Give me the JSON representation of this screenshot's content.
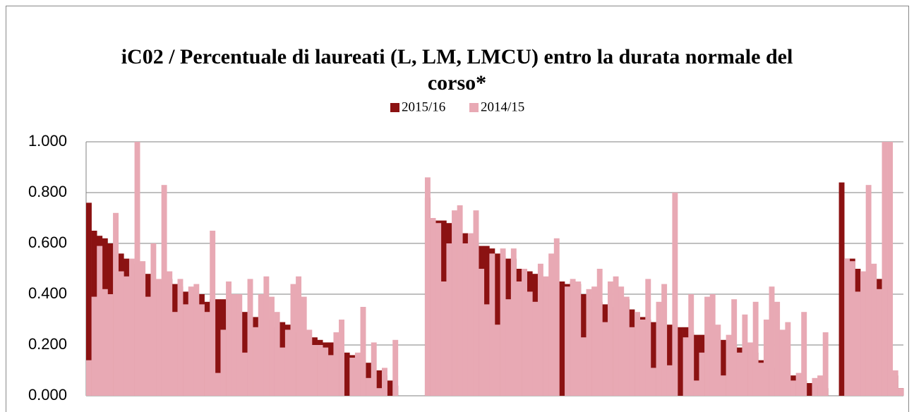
{
  "chart_data": {
    "type": "bar",
    "title": "iC02 / Percentuale di laureati (L, LM, LMCU) entro la durata normale del corso*",
    "categories": [
      null,
      null,
      null,
      null,
      null,
      null,
      null,
      null,
      null,
      null,
      null,
      null,
      null,
      null,
      null,
      null,
      null,
      null,
      null,
      null,
      null,
      null,
      null,
      null,
      null,
      null,
      null,
      null,
      null,
      null,
      null,
      null,
      null,
      null,
      null,
      null,
      null,
      null,
      null,
      null,
      null,
      null,
      null,
      null,
      null,
      null,
      null,
      null,
      null,
      null,
      null,
      null,
      null,
      null,
      null,
      null,
      null,
      null,
      null,
      null,
      null,
      null,
      null,
      null,
      null,
      null,
      null,
      null,
      null,
      null,
      null,
      null,
      null,
      null,
      null,
      null,
      null,
      null,
      null,
      null,
      null,
      null,
      null,
      null,
      null,
      null,
      null,
      null,
      null,
      null,
      null,
      null,
      null,
      null,
      null,
      null,
      null,
      null,
      null,
      null,
      null,
      null,
      null,
      null,
      null,
      null,
      null,
      null,
      null,
      null,
      null,
      null,
      null,
      null,
      null,
      null,
      null,
      null,
      null,
      null,
      null,
      null,
      null,
      null,
      null,
      null,
      null,
      null,
      null,
      null,
      null,
      null,
      null,
      null,
      null,
      null,
      null,
      null,
      null,
      null,
      null,
      null,
      null,
      null,
      null,
      null,
      null,
      null,
      null,
      null,
      null,
      null
    ],
    "series": [
      {
        "name": "2015/16",
        "color": "#8b1212",
        "values": [
          0.76,
          0.65,
          0.63,
          0.62,
          0.6,
          0.6,
          0.56,
          0.54,
          0.49,
          0.52,
          0.48,
          0.48,
          0.44,
          0.45,
          0.24,
          0.46,
          0.44,
          0.43,
          0.41,
          0.41,
          0.26,
          0.4,
          0.37,
          0.38,
          0.38,
          0.38,
          0.3,
          0.34,
          0.33,
          0.33,
          0.3,
          0.31,
          0.3,
          0.3,
          0.27,
          0.27,
          0.29,
          0.28,
          0.25,
          0.25,
          0.25,
          0.23,
          0.23,
          0.22,
          0.21,
          0.21,
          0.19,
          0.18,
          0.17,
          0.16,
          0.13,
          0.14,
          0.13,
          0.1,
          0.1,
          0.08,
          0.06,
          0.04,
          null,
          null,
          null,
          null,
          null,
          0.78,
          0.7,
          0.69,
          0.69,
          0.68,
          0.67,
          0.6,
          0.64,
          0.62,
          0.6,
          0.59,
          0.59,
          0.58,
          0.56,
          0.55,
          0.54,
          0.54,
          0.5,
          0.49,
          0.49,
          0.48,
          0.47,
          0.41,
          0.44,
          0.43,
          0.45,
          0.44,
          0.45,
          0.44,
          0.4,
          0.38,
          0.35,
          0.37,
          0.36,
          0.35,
          0.34,
          0.39,
          0.38,
          0.34,
          0.32,
          0.31,
          0.3,
          0.29,
          0.29,
          0.28,
          0.28,
          0.27,
          0.27,
          0.27,
          0.25,
          0.24,
          0.24,
          0.23,
          0.23,
          0.22,
          0.22,
          0.21,
          0.2,
          0.19,
          0.19,
          0.18,
          0.17,
          0.14,
          0.12,
          0.11,
          0.1,
          0.09,
          0.08,
          0.08,
          0.07,
          0.06,
          0.05,
          0.04,
          0.04,
          0.03,
          null,
          null,
          0.84,
          0.54,
          0.54,
          0.5,
          0.47,
          0.46,
          0.44,
          0.46,
          0.43,
          0,
          0.08,
          0.03
        ]
      },
      {
        "name": "2014/15",
        "color": "#e8a9b4",
        "values": [
          0.14,
          0.39,
          0.59,
          0.42,
          0.4,
          0.72,
          0.49,
          0.47,
          0.54,
          1.0,
          0.53,
          0.39,
          0.6,
          0.46,
          0.83,
          0.49,
          0.33,
          0.46,
          0.36,
          0.43,
          0.44,
          0.36,
          0.33,
          0.65,
          0.09,
          0.26,
          0.45,
          0.4,
          0.4,
          0.17,
          0.46,
          0.27,
          0.4,
          0.47,
          0.39,
          0.33,
          0.19,
          0.26,
          0.44,
          0.47,
          0.39,
          0.26,
          0.2,
          0.2,
          0.19,
          0.16,
          0.25,
          0.3,
          0,
          0.15,
          0.17,
          0.35,
          0.07,
          0.21,
          0.03,
          0.11,
          0,
          0.22,
          null,
          null,
          null,
          null,
          null,
          0.86,
          0.7,
          0.68,
          0.45,
          0.6,
          0.73,
          0.75,
          0.6,
          0.64,
          0.73,
          0.5,
          0.36,
          0.56,
          0.28,
          0.58,
          0.38,
          0.58,
          0.45,
          0.5,
          0.41,
          0.37,
          0.52,
          0.47,
          0.56,
          0.62,
          0,
          0.43,
          0.46,
          0.45,
          0.23,
          0.42,
          0.43,
          0.5,
          0.29,
          0.45,
          0.47,
          0.43,
          0.39,
          0.27,
          0.33,
          0.3,
          0.46,
          0.11,
          0.37,
          0.44,
          0.12,
          0.8,
          0,
          0.23,
          0.4,
          0.06,
          0.17,
          0.39,
          0.4,
          0.28,
          0.08,
          0.24,
          0.38,
          0.17,
          0.32,
          0.21,
          0.37,
          0.13,
          0.3,
          0.43,
          0.37,
          0.26,
          0.29,
          0.06,
          0.09,
          0.33,
          0,
          0.07,
          0.08,
          0.25,
          null,
          null,
          0,
          0.54,
          0.53,
          0.41,
          0.49,
          0.83,
          0.52,
          0.42,
          1.0,
          1.0,
          0.1,
          0.03
        ]
      }
    ],
    "ylim": [
      0,
      1
    ],
    "yticks": [
      {
        "value": 0,
        "label": "0.000"
      },
      {
        "value": 0.2,
        "label": "0.200"
      },
      {
        "value": 0.4,
        "label": "0.400"
      },
      {
        "value": 0.6,
        "label": "0.600"
      },
      {
        "value": 0.8,
        "label": "0.800"
      },
      {
        "value": 1,
        "label": "1.000"
      }
    ],
    "grid": true,
    "legend": "top"
  }
}
